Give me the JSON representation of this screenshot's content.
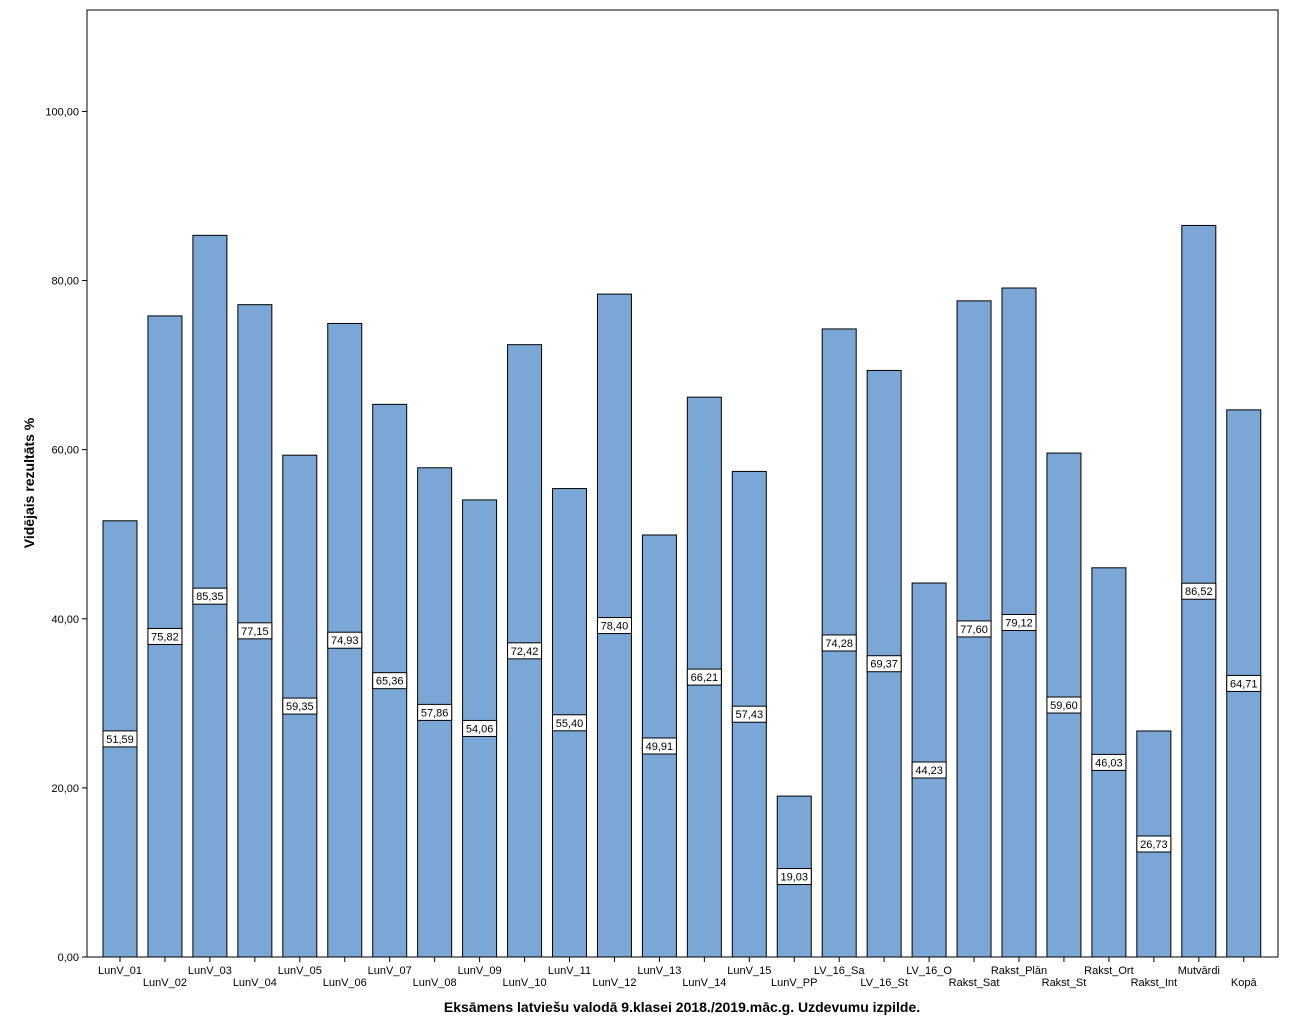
{
  "chart_data": {
    "type": "bar",
    "xlabel": "Eksāmens latviešu valodā 9.klasei 2018./2019.māc.g. Uzdevumu izpilde.",
    "ylabel": "Vidējais rezultāts %",
    "ylim": [
      0,
      112
    ],
    "yticks": [
      "0,00",
      "20,00",
      "40,00",
      "60,00",
      "80,00",
      "100,00"
    ],
    "ytick_values": [
      0,
      20,
      40,
      60,
      80,
      100
    ],
    "grid": false,
    "bar_color": "#7aa7d6",
    "categories": [
      "LunV_01",
      "LunV_02",
      "LunV_03",
      "LunV_04",
      "LunV_05",
      "LunV_06",
      "LunV_07",
      "LunV_08",
      "LunV_09",
      "LunV_10",
      "LunV_11",
      "LunV_12",
      "LunV_13",
      "LunV_14",
      "LunV_15",
      "LunV_PP",
      "LV_16_Sa",
      "LV_16_St",
      "LV_16_O",
      "Rakst_Sat",
      "Rakst_Plān",
      "Rakst_St",
      "Rakst_Ort",
      "Rakst_Int",
      "Mutvārdi",
      "Kopā"
    ],
    "values": [
      51.59,
      75.82,
      85.35,
      77.15,
      59.35,
      74.93,
      65.36,
      57.86,
      54.06,
      72.42,
      55.4,
      78.4,
      49.91,
      66.21,
      57.43,
      19.03,
      74.28,
      69.37,
      44.23,
      77.6,
      79.12,
      59.6,
      46.03,
      26.73,
      86.52,
      64.71
    ],
    "value_labels": [
      "51,59",
      "75,82",
      "85,35",
      "77,15",
      "59,35",
      "74,93",
      "65,36",
      "57,86",
      "54,06",
      "72,42",
      "55,40",
      "78,40",
      "49,91",
      "66,21",
      "57,43",
      "19,03",
      "74,28",
      "69,37",
      "44,23",
      "77,60",
      "79,12",
      "59,60",
      "46,03",
      "26,73",
      "86,52",
      "64,71"
    ]
  }
}
